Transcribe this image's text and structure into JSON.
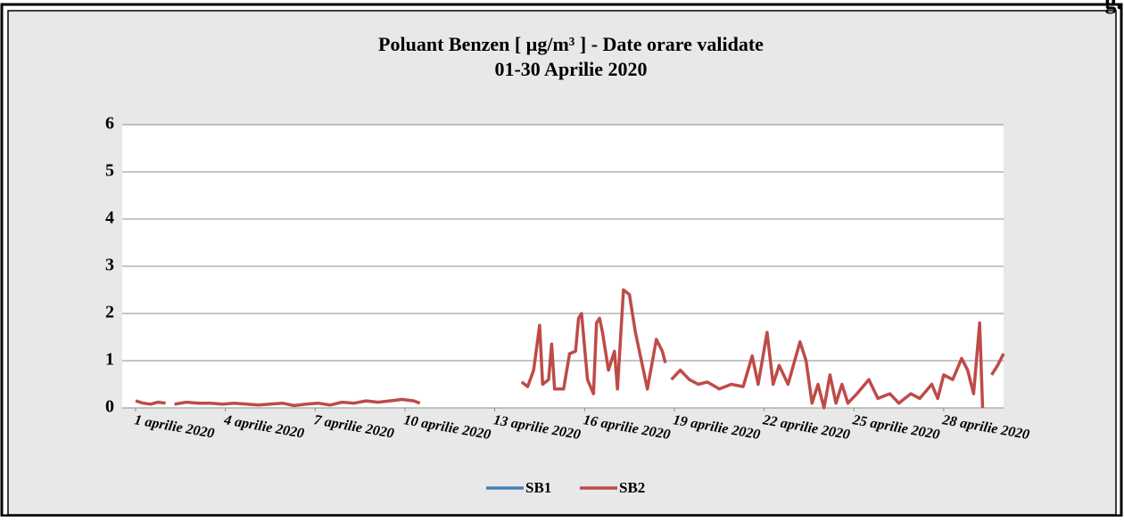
{
  "header_fragment": "g.",
  "chart_data": {
    "type": "line",
    "title": "Poluant Benzen [ µg/m³ ] - Date orare validate",
    "subtitle": "01-30 Aprilie 2020",
    "xlim": [
      1,
      30
    ],
    "xticks": [
      {
        "value": 1,
        "label": "1 aprilie 2020"
      },
      {
        "value": 4,
        "label": "4 aprilie 2020"
      },
      {
        "value": 7,
        "label": "7 aprilie 2020"
      },
      {
        "value": 10,
        "label": "10 aprilie 2020"
      },
      {
        "value": 13,
        "label": "13 aprilie 2020"
      },
      {
        "value": 16,
        "label": "16 aprilie 2020"
      },
      {
        "value": 19,
        "label": "19 aprilie 2020"
      },
      {
        "value": 22,
        "label": "22 aprilie 2020"
      },
      {
        "value": 25,
        "label": "25 aprilie 2020"
      },
      {
        "value": 28,
        "label": "28 aprilie 2020"
      }
    ],
    "ylim": [
      0,
      6
    ],
    "yticks": [
      0,
      1,
      2,
      3,
      4,
      5,
      6
    ],
    "grid": true,
    "legend": "bottom",
    "x": [
      1,
      1.25,
      1.5,
      1.75,
      2,
      2.15,
      2.3,
      2.7,
      3.1,
      3.5,
      3.9,
      4.3,
      4.7,
      5.1,
      5.5,
      5.9,
      6.3,
      6.7,
      7.1,
      7.5,
      7.9,
      8.3,
      8.7,
      9.1,
      9.5,
      9.9,
      10.3,
      10.5,
      12,
      13.9,
      14.1,
      14.3,
      14.5,
      14.6,
      14.8,
      14.9,
      15.0,
      15.3,
      15.5,
      15.7,
      15.8,
      15.9,
      16.1,
      16.3,
      16.4,
      16.5,
      16.6,
      16.8,
      17.0,
      17.1,
      17.3,
      17.5,
      17.7,
      17.9,
      18.1,
      18.4,
      18.6,
      18.7,
      18.8,
      18.9,
      19.2,
      19.5,
      19.8,
      20.1,
      20.5,
      20.9,
      21.3,
      21.6,
      21.8,
      22.1,
      22.3,
      22.5,
      22.8,
      23.2,
      23.4,
      23.6,
      23.8,
      24.0,
      24.2,
      24.4,
      24.6,
      24.8,
      25.1,
      25.5,
      25.8,
      26.2,
      26.5,
      26.9,
      27.2,
      27.6,
      27.8,
      28.0,
      28.3,
      28.6,
      28.8,
      29.0,
      29.2,
      29.3,
      29.45,
      29.6,
      29.8,
      30.0
    ],
    "series": [
      {
        "name": "SB1",
        "color": "#4a7ebb",
        "values": [
          null,
          null,
          null,
          null,
          null,
          null,
          null,
          null,
          null,
          null,
          null,
          null,
          null,
          null,
          null,
          null,
          null,
          null,
          null,
          null,
          null,
          null,
          null,
          null,
          null,
          null,
          null,
          null,
          null,
          null,
          null,
          null,
          null,
          null,
          null,
          null,
          null,
          null,
          null,
          null,
          null,
          null,
          null,
          null,
          null,
          null,
          null,
          null,
          null,
          null,
          null,
          null,
          null,
          null,
          null,
          null,
          null,
          null,
          null,
          null,
          null,
          null,
          null,
          null,
          null,
          null,
          null,
          null,
          null,
          null,
          null,
          null,
          null,
          null,
          null,
          null,
          null,
          null,
          null,
          null,
          null,
          null,
          null,
          null,
          null,
          null,
          null,
          null,
          null,
          null,
          null,
          null,
          null,
          null,
          null,
          null,
          null,
          null,
          null,
          null,
          null,
          null
        ]
      },
      {
        "name": "SB2",
        "color": "#be4b48",
        "values": [
          0.15,
          0.1,
          0.08,
          0.12,
          0.1,
          null,
          0.08,
          0.12,
          0.1,
          0.1,
          0.08,
          0.1,
          0.08,
          0.06,
          0.08,
          0.1,
          0.05,
          0.08,
          0.1,
          0.06,
          0.12,
          0.1,
          0.15,
          0.12,
          0.15,
          0.18,
          0.15,
          0.1,
          null,
          0.55,
          0.45,
          0.8,
          1.75,
          0.5,
          0.6,
          1.35,
          0.4,
          0.4,
          1.15,
          1.2,
          1.9,
          2.0,
          0.6,
          0.3,
          1.8,
          1.9,
          1.6,
          0.8,
          1.2,
          0.4,
          2.5,
          2.4,
          1.6,
          1.0,
          0.4,
          1.45,
          1.2,
          0.95,
          null,
          0.6,
          0.8,
          0.6,
          0.5,
          0.55,
          0.4,
          0.5,
          0.45,
          1.1,
          0.5,
          1.6,
          0.5,
          0.9,
          0.5,
          1.4,
          1.0,
          0.1,
          0.5,
          0,
          0.7,
          0.1,
          0.5,
          0.1,
          0.3,
          0.6,
          0.2,
          0.3,
          0.1,
          0.3,
          0.2,
          0.5,
          0.2,
          0.7,
          0.6,
          1.05,
          0.8,
          0.3,
          1.8,
          0,
          null,
          0.7,
          0.9,
          1.15
        ]
      }
    ]
  }
}
